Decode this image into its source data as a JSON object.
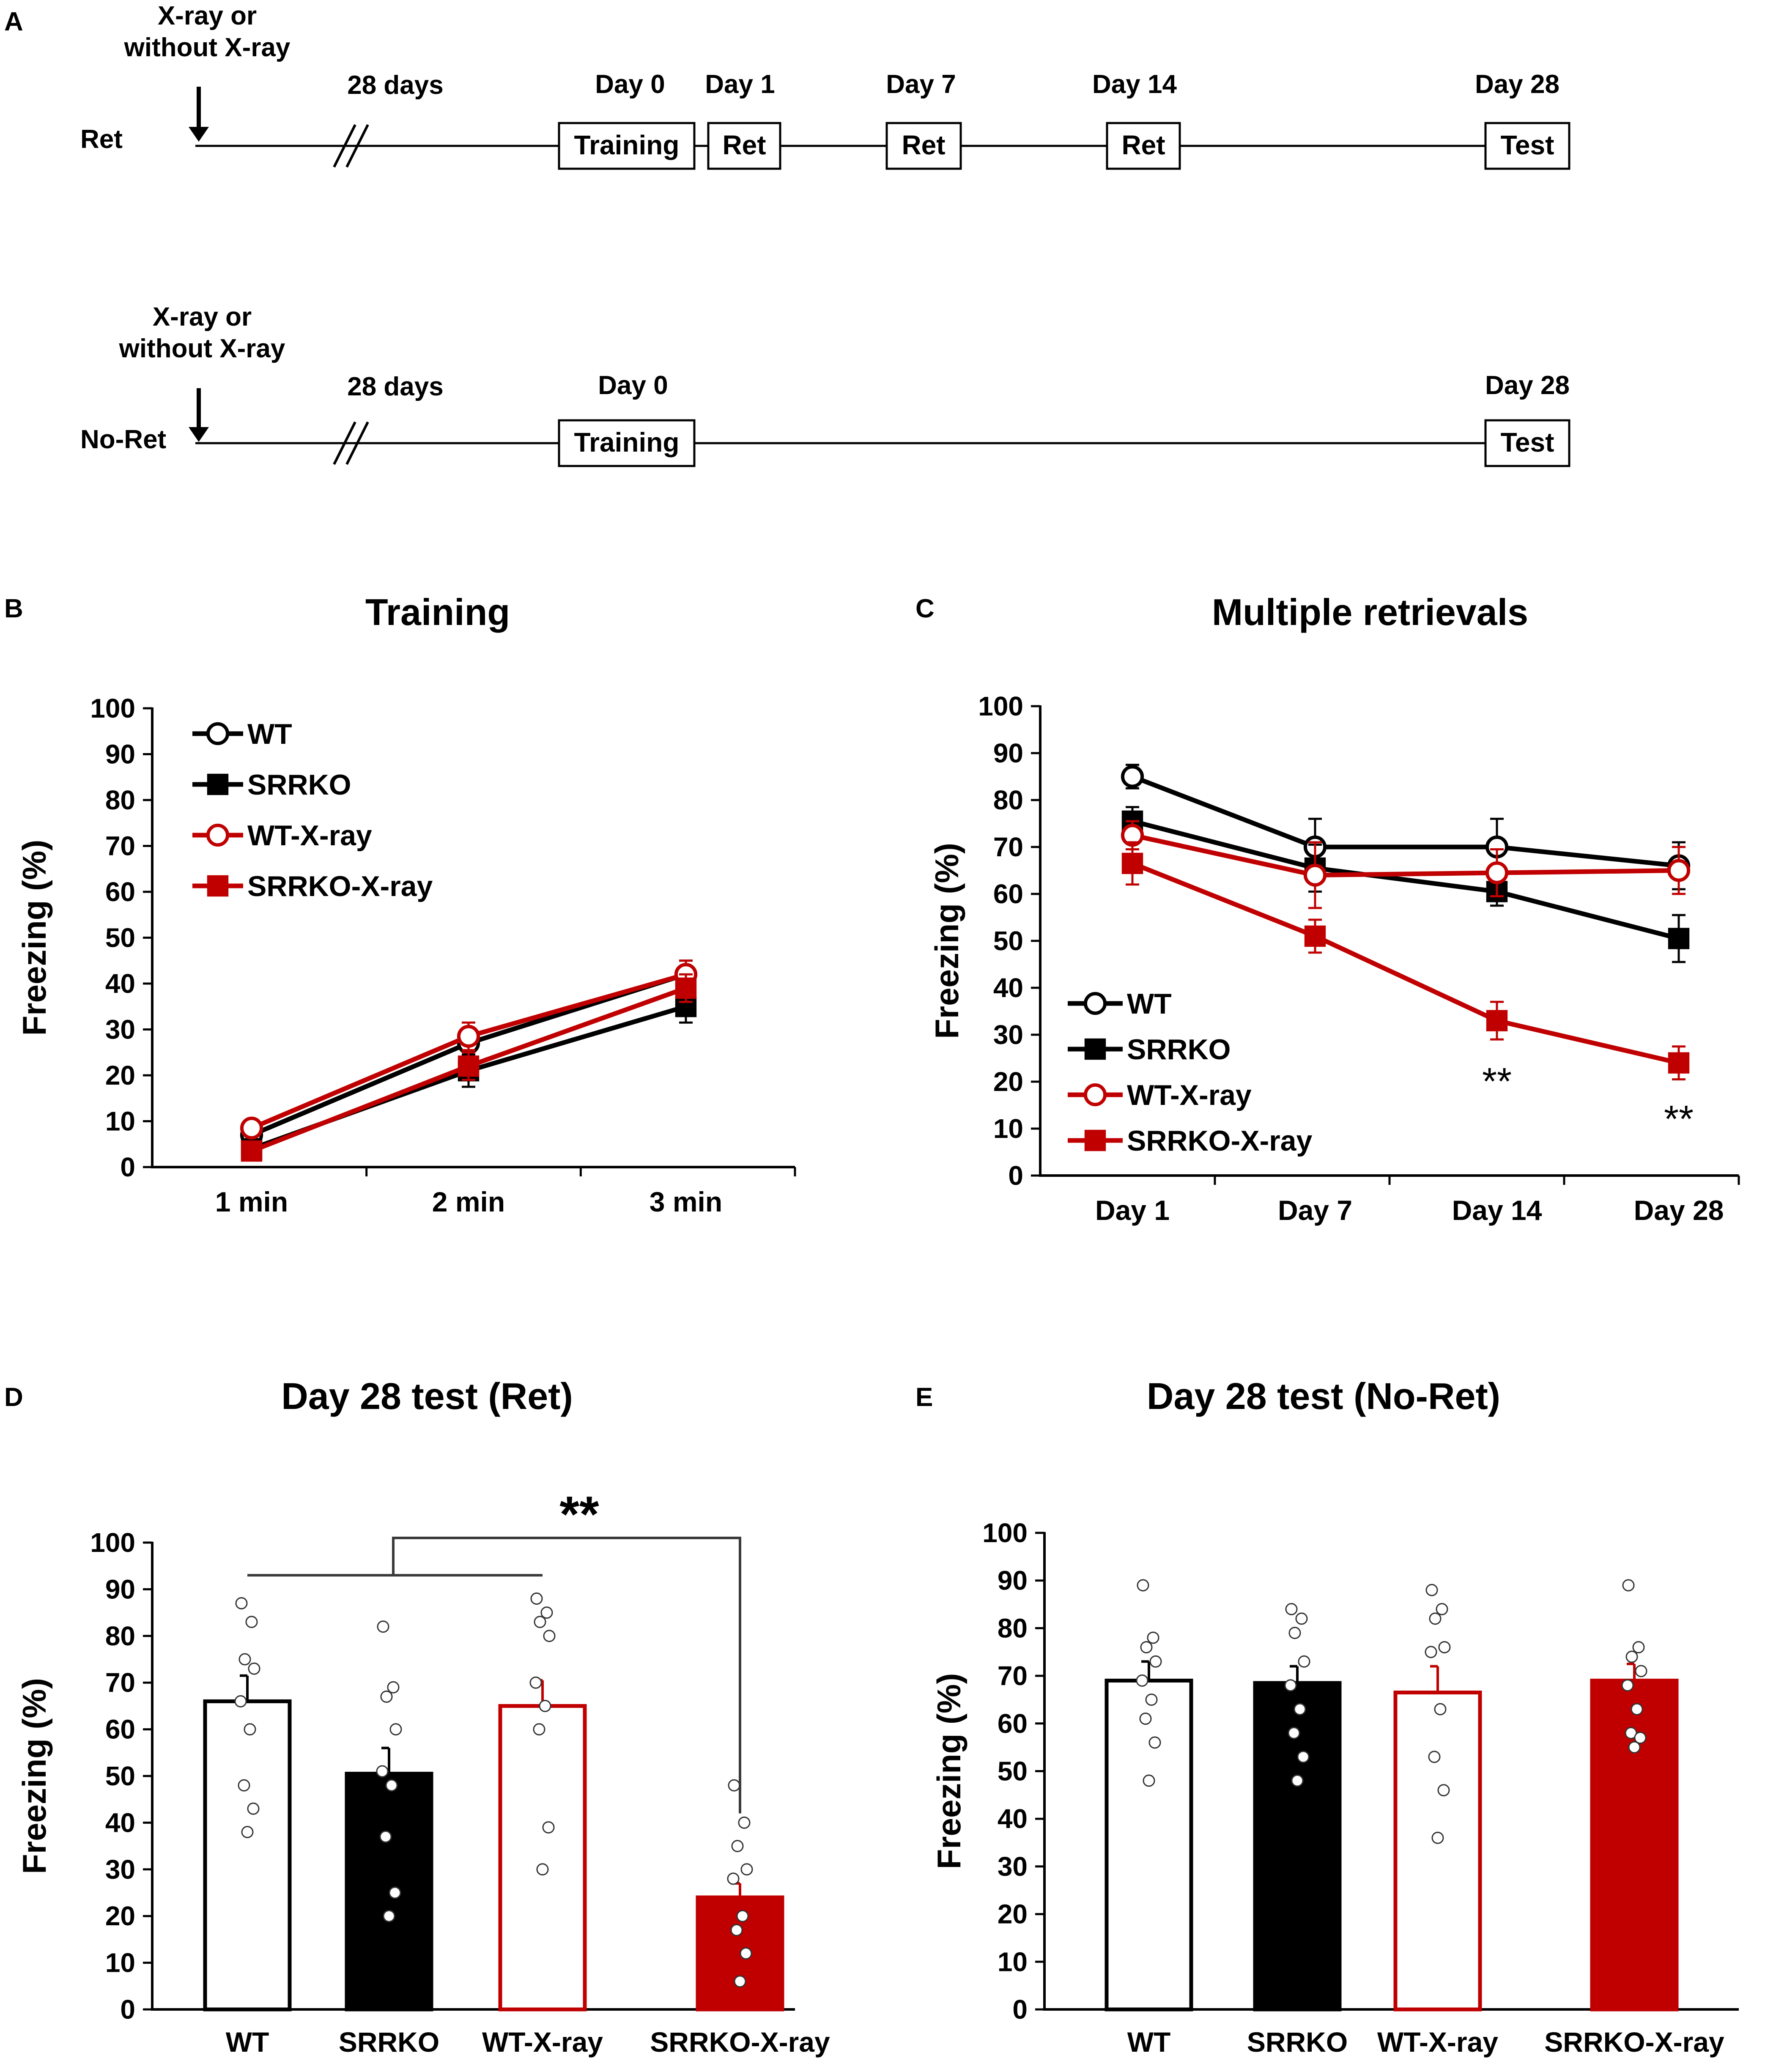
{
  "panel_labels": {
    "a": "A",
    "b": "B",
    "c": "C",
    "d": "D",
    "e": "E"
  },
  "colors": {
    "black": "#000000",
    "red": "#c00000",
    "white": "#ffffff",
    "gray": "#3a3a3a"
  },
  "timeline": {
    "ret": {
      "label": "Ret",
      "xray_line1": "X-ray or",
      "xray_line2": "without X-ray",
      "gap_label": "28 days",
      "day_labels": [
        "Day 0",
        "Day 1",
        "Day 7",
        "Day 14",
        "Day 28"
      ],
      "boxes": [
        "Training",
        "Ret",
        "Ret",
        "Ret",
        "Test"
      ]
    },
    "noret": {
      "label": "No-Ret",
      "xray_line1": "X-ray or",
      "xray_line2": "without X-ray",
      "gap_label": "28 days",
      "day_labels": [
        "Day 0",
        "Day 28"
      ],
      "boxes": [
        "Training",
        "Test"
      ]
    }
  },
  "chart_data": [
    {
      "id": "B",
      "type": "line",
      "title": "Training",
      "xlabel": "",
      "ylabel": "Freezing (%)",
      "ylim": [
        0,
        100
      ],
      "yticks": [
        "0",
        "10",
        "20",
        "30",
        "40",
        "50",
        "60",
        "70",
        "80",
        "90",
        "100"
      ],
      "categories": [
        "1 min",
        "2 min",
        "3 min"
      ],
      "legend_position": "top-left",
      "series": [
        {
          "name": "WT",
          "color": "#000000",
          "marker": "open-circle",
          "values": [
            7,
            27,
            42
          ],
          "errors": [
            1.5,
            3,
            3
          ]
        },
        {
          "name": "SRRKO",
          "color": "#000000",
          "marker": "filled-square",
          "values": [
            4,
            21,
            35
          ],
          "errors": [
            1.5,
            3.5,
            3.5
          ]
        },
        {
          "name": "WT-X-ray",
          "color": "#c00000",
          "marker": "open-circle",
          "values": [
            8.5,
            28.5,
            42
          ],
          "errors": [
            1.5,
            3,
            3
          ]
        },
        {
          "name": "SRRKO-X-ray",
          "color": "#c00000",
          "marker": "filled-square",
          "values": [
            3.5,
            22,
            39
          ],
          "errors": [
            1.5,
            3,
            3
          ]
        }
      ]
    },
    {
      "id": "C",
      "type": "line",
      "title": "Multiple retrievals",
      "xlabel": "",
      "ylabel": "Freezing (%)",
      "ylim": [
        0,
        100
      ],
      "yticks": [
        "0",
        "10",
        "20",
        "30",
        "40",
        "50",
        "60",
        "70",
        "80",
        "90",
        "100"
      ],
      "categories": [
        "Day 1",
        "Day 7",
        "Day 14",
        "Day 28"
      ],
      "legend_position": "bottom-left",
      "annotations": [
        {
          "category": "Day 14",
          "text": "**",
          "y": 20
        },
        {
          "category": "Day 28",
          "text": "**",
          "y": 12
        }
      ],
      "series": [
        {
          "name": "WT",
          "color": "#000000",
          "marker": "open-circle",
          "values": [
            85,
            70,
            70,
            66
          ],
          "errors": [
            2.5,
            6,
            6,
            5
          ]
        },
        {
          "name": "SRRKO",
          "color": "#000000",
          "marker": "filled-square",
          "values": [
            75.5,
            65.5,
            60.5,
            50.5
          ],
          "errors": [
            3,
            5,
            3,
            5
          ]
        },
        {
          "name": "WT-X-ray",
          "color": "#c00000",
          "marker": "open-circle",
          "values": [
            72.5,
            64,
            64.5,
            65
          ],
          "errors": [
            3,
            7,
            5,
            5
          ]
        },
        {
          "name": "SRRKO-X-ray",
          "color": "#c00000",
          "marker": "filled-square",
          "values": [
            66.5,
            51,
            33,
            24
          ],
          "errors": [
            4.5,
            3.5,
            4,
            3.5
          ]
        }
      ]
    },
    {
      "id": "D",
      "type": "bar",
      "title": "Day 28 test (Ret)",
      "xlabel": "",
      "ylabel": "Freezing (%)",
      "ylim": [
        0,
        100
      ],
      "yticks": [
        "0",
        "10",
        "20",
        "30",
        "40",
        "50",
        "60",
        "70",
        "80",
        "90",
        "100"
      ],
      "categories": [
        "WT",
        "SRRKO",
        "WT-X-ray",
        "SRRKO-X-ray"
      ],
      "values": [
        66,
        50.5,
        65,
        24
      ],
      "errors": [
        5.5,
        5.5,
        5.5,
        3
      ],
      "fills": [
        "#ffffff",
        "#000000",
        "#ffffff",
        "#c00000"
      ],
      "strokes": [
        "#000000",
        "#000000",
        "#c00000",
        "#c00000"
      ],
      "points": [
        [
          87,
          83,
          75,
          73,
          66,
          60,
          48,
          43,
          38
        ],
        [
          82,
          69,
          67,
          60,
          51,
          48,
          37,
          25,
          20
        ],
        [
          88,
          85,
          83,
          80,
          70,
          65,
          60,
          39,
          30
        ],
        [
          48,
          40,
          35,
          30,
          28,
          20,
          17,
          12,
          6
        ]
      ],
      "significance": {
        "text": "**",
        "bracket_y": 93,
        "bracket_top": 101
      }
    },
    {
      "id": "E",
      "type": "bar",
      "title": "Day 28 test (No-Ret)",
      "xlabel": "",
      "ylabel": "Freezing (%)",
      "ylim": [
        0,
        100
      ],
      "yticks": [
        "0",
        "10",
        "20",
        "30",
        "40",
        "50",
        "60",
        "70",
        "80",
        "90",
        "100"
      ],
      "categories": [
        "WT",
        "SRRKO",
        "WT-X-ray",
        "SRRKO-X-ray"
      ],
      "values": [
        69,
        68.5,
        66.5,
        69
      ],
      "errors": [
        4,
        3.5,
        5.5,
        3.5
      ],
      "fills": [
        "#ffffff",
        "#000000",
        "#ffffff",
        "#c00000"
      ],
      "strokes": [
        "#000000",
        "#000000",
        "#c00000",
        "#c00000"
      ],
      "points": [
        [
          89,
          78,
          76,
          73,
          69,
          65,
          61,
          56,
          48
        ],
        [
          84,
          82,
          79,
          73,
          68,
          63,
          58,
          53,
          48
        ],
        [
          88,
          84,
          82,
          76,
          75,
          63,
          53,
          46,
          36
        ],
        [
          89,
          76,
          74,
          71,
          68,
          63,
          58,
          57,
          55
        ]
      ]
    }
  ]
}
